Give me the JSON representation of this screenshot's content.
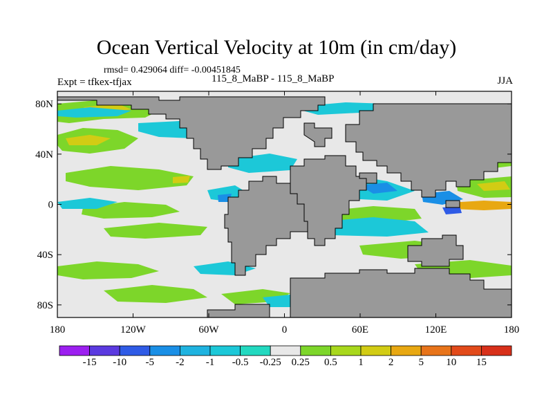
{
  "title": "Ocean Vertical Velocity at 10m (in cm/day)",
  "stats": "rmsd= 0.429064 diff= -0.00451845",
  "experiment": "Expt = tfkex-tfjax",
  "case_label": "115_8_MaBP - 115_8_MaBP",
  "season": "JJA",
  "map": {
    "lon_range": [
      -180,
      180
    ],
    "lat_range": [
      -90,
      90
    ],
    "x_ticks": [
      "180",
      "120W",
      "60W",
      "0",
      "60E",
      "120E",
      "180"
    ],
    "y_ticks": [
      "80N",
      "40N",
      "0",
      "40S",
      "80S"
    ],
    "land_color": "#999999",
    "ocean_background": "#e8e8e8"
  },
  "colorbar": {
    "labels": [
      "-15",
      "-10",
      "-5",
      "-2",
      "-1",
      "-0.5",
      "-0.25",
      "0.25",
      "0.5",
      "1",
      "2",
      "5",
      "10",
      "15"
    ],
    "colors": [
      "#9c1ff0",
      "#5b3ae0",
      "#2f5be6",
      "#1a8fe6",
      "#1fb3e0",
      "#1cc8d8",
      "#22d9c0",
      "#e8e8e8",
      "#7dd62a",
      "#a8d81c",
      "#d2cc14",
      "#e8a812",
      "#e8741a",
      "#e24a1a",
      "#d8301a"
    ]
  }
}
